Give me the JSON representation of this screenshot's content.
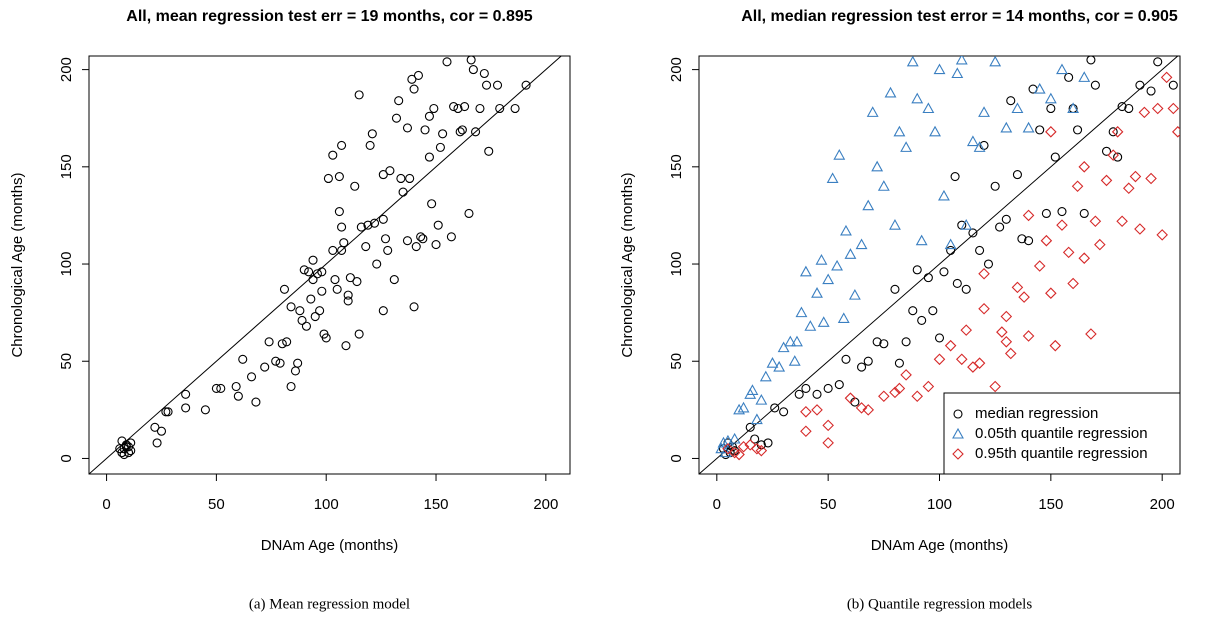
{
  "chart_data": [
    {
      "type": "scatter",
      "title": "All, mean regression test err = 19 months, cor = 0.895",
      "x_label": "DNAm Age (months)",
      "y_label": "Chronological Age (months)",
      "caption": "(a)  Mean regression model",
      "color": "#000000",
      "marker": "circle",
      "x": [
        7,
        8,
        9,
        10,
        8,
        10,
        11,
        9,
        7,
        11,
        6,
        22,
        23,
        25,
        27,
        28,
        36,
        36,
        45,
        50,
        52,
        59,
        60,
        62,
        66,
        68,
        72,
        74,
        77,
        79,
        80,
        82,
        81,
        84,
        84,
        86,
        87,
        88,
        89,
        90,
        91,
        92,
        93,
        94,
        94,
        95,
        96,
        97,
        98,
        99,
        100,
        98,
        101,
        103,
        103,
        104,
        105,
        106,
        106,
        107,
        107,
        107,
        108,
        109,
        110,
        110,
        111,
        113,
        114,
        115,
        115,
        116,
        118,
        119,
        120,
        121,
        122,
        123,
        126,
        126,
        126,
        127,
        128,
        129,
        131,
        132,
        133,
        134,
        135,
        137,
        137,
        138,
        139,
        140,
        140,
        141,
        142,
        143,
        144,
        145,
        147,
        147,
        148,
        149,
        150,
        151,
        152,
        153,
        155,
        157,
        158,
        160,
        161,
        162,
        163,
        165,
        166,
        167,
        168,
        170,
        172,
        173,
        174,
        178,
        186,
        191,
        179
      ],
      "values": [
        9,
        5,
        6,
        6,
        2,
        3,
        4,
        7,
        3,
        8,
        5,
        16,
        8,
        14,
        24,
        24,
        26,
        33,
        25,
        36,
        36,
        37,
        32,
        51,
        42,
        29,
        47,
        60,
        50,
        49,
        59,
        60,
        87,
        37,
        78,
        45,
        49,
        76,
        71,
        97,
        68,
        96,
        82,
        92,
        102,
        73,
        95,
        76,
        86,
        64,
        62,
        96,
        144,
        156,
        107,
        92,
        87,
        127,
        145,
        161,
        119,
        107,
        111,
        58,
        81,
        84,
        93,
        140,
        91,
        64,
        187,
        119,
        109,
        120,
        161,
        167,
        121,
        100,
        146,
        123,
        76,
        113,
        107,
        148,
        92,
        175,
        184,
        144,
        137,
        112,
        170,
        144,
        195,
        190,
        78,
        109,
        197,
        114,
        113,
        169,
        155,
        176,
        131,
        180,
        110,
        120,
        160,
        167,
        204,
        114,
        181,
        180,
        168,
        169,
        181,
        126,
        205,
        200,
        168,
        180,
        198,
        192,
        158,
        192,
        180,
        192,
        180
      ],
      "xlim": [
        -8,
        211
      ],
      "ylim": [
        -8,
        207
      ],
      "xticks": [
        0,
        50,
        100,
        150,
        200
      ],
      "yticks": [
        0,
        50,
        100,
        150,
        200
      ]
    },
    {
      "type": "scatter",
      "title": "All, median regression test error = 14 months, cor = 0.905",
      "x_label": "DNAm Age (months)",
      "y_label": "Chronological Age (months)",
      "caption": "(b)  Quantile regression models",
      "legend": "bottom-right",
      "xlim": [
        -8,
        208
      ],
      "ylim": [
        -8,
        207
      ],
      "xticks": [
        0,
        50,
        100,
        150,
        200
      ],
      "yticks": [
        0,
        50,
        100,
        150,
        200
      ],
      "series": [
        {
          "name": "median regression",
          "color": "#000000",
          "marker": "circle",
          "x": [
            3,
            5,
            6,
            7,
            4,
            8,
            15,
            17,
            20,
            23,
            26,
            30,
            37,
            40,
            45,
            50,
            55,
            58,
            62,
            65,
            68,
            72,
            75,
            80,
            82,
            85,
            88,
            90,
            92,
            95,
            97,
            100,
            102,
            105,
            107,
            108,
            110,
            112,
            115,
            118,
            120,
            122,
            125,
            127,
            130,
            132,
            135,
            137,
            140,
            142,
            145,
            148,
            150,
            152,
            155,
            158,
            160,
            162,
            165,
            168,
            170,
            175,
            180,
            182,
            185,
            190,
            195,
            198,
            205,
            178
          ],
          "values": [
            5,
            8,
            3,
            6,
            2,
            4,
            16,
            10,
            7,
            8,
            26,
            24,
            33,
            36,
            33,
            36,
            38,
            51,
            29,
            47,
            50,
            60,
            59,
            87,
            49,
            60,
            76,
            97,
            71,
            93,
            76,
            62,
            96,
            107,
            145,
            90,
            120,
            87,
            116,
            107,
            161,
            100,
            140,
            119,
            123,
            184,
            146,
            113,
            112,
            190,
            169,
            126,
            180,
            155,
            127,
            196,
            180,
            169,
            126,
            205,
            192,
            158,
            155,
            181,
            180,
            192,
            189,
            204,
            192,
            168
          ]
        },
        {
          "name": "0.05th quantile regression",
          "color": "#3a7fc1",
          "marker": "triangle",
          "x": [
            2,
            3,
            4,
            5,
            8,
            10,
            12,
            15,
            16,
            18,
            20,
            22,
            25,
            28,
            30,
            33,
            35,
            38,
            40,
            42,
            45,
            47,
            50,
            52,
            54,
            55,
            58,
            60,
            62,
            65,
            68,
            70,
            72,
            75,
            78,
            80,
            82,
            85,
            88,
            90,
            92,
            95,
            98,
            100,
            102,
            105,
            108,
            110,
            112,
            115,
            118,
            120,
            125,
            130,
            135,
            140,
            145,
            150,
            155,
            160,
            165,
            48,
            57,
            36
          ],
          "values": [
            5,
            8,
            3,
            9,
            10,
            25,
            26,
            33,
            35,
            20,
            30,
            42,
            49,
            47,
            57,
            60,
            50,
            75,
            96,
            68,
            85,
            102,
            92,
            144,
            99,
            156,
            117,
            105,
            84,
            110,
            130,
            178,
            150,
            140,
            188,
            120,
            168,
            160,
            204,
            185,
            112,
            180,
            168,
            200,
            135,
            110,
            198,
            205,
            120,
            163,
            160,
            178,
            204,
            170,
            180,
            170,
            190,
            185,
            200,
            180,
            196,
            70,
            72,
            60
          ]
        },
        {
          "name": "0.95th quantile regression",
          "color": "#d62a2a",
          "marker": "diamond",
          "x": [
            5,
            8,
            10,
            12,
            15,
            18,
            20,
            40,
            40,
            45,
            50,
            50,
            60,
            65,
            68,
            75,
            80,
            82,
            85,
            90,
            95,
            100,
            105,
            110,
            112,
            115,
            118,
            120,
            125,
            128,
            130,
            132,
            135,
            138,
            140,
            145,
            148,
            150,
            152,
            155,
            158,
            160,
            162,
            165,
            168,
            170,
            172,
            175,
            178,
            180,
            182,
            185,
            188,
            190,
            192,
            195,
            198,
            200,
            202,
            205,
            207,
            150,
            165,
            140,
            120,
            130
          ],
          "values": [
            5,
            3,
            2,
            6,
            7,
            5,
            4,
            24,
            14,
            25,
            17,
            8,
            31,
            26,
            25,
            32,
            34,
            36,
            43,
            32,
            37,
            51,
            58,
            51,
            66,
            47,
            49,
            77,
            37,
            65,
            73,
            54,
            88,
            83,
            63,
            99,
            112,
            85,
            58,
            120,
            106,
            90,
            140,
            103,
            64,
            122,
            110,
            143,
            156,
            168,
            122,
            139,
            145,
            118,
            178,
            144,
            180,
            115,
            196,
            180,
            168,
            168,
            150,
            125,
            95,
            60
          ]
        }
      ]
    }
  ]
}
